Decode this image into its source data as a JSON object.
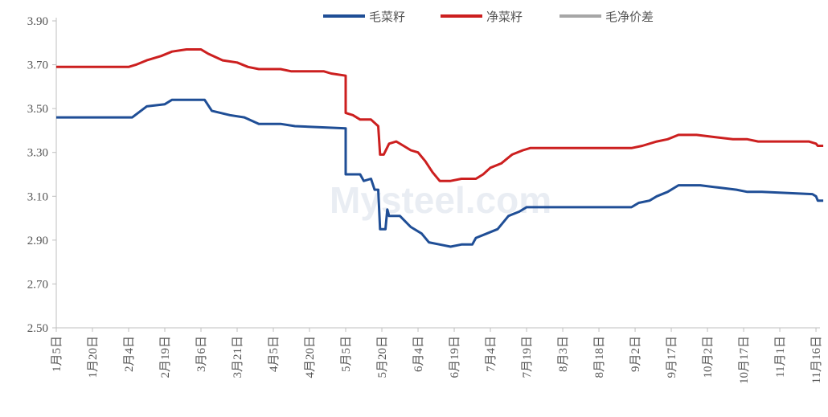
{
  "chart_data": {
    "type": "line",
    "title": "",
    "xlabel": "",
    "ylabel": "",
    "ylim": [
      2.5,
      3.9
    ],
    "y_ticks": [
      "2.50",
      "2.70",
      "2.90",
      "3.10",
      "3.30",
      "3.50",
      "3.70",
      "3.90"
    ],
    "x_ticks": [
      "1月5日",
      "1月20日",
      "2月4日",
      "2月19日",
      "3月6日",
      "3月21日",
      "4月5日",
      "4月20日",
      "5月5日",
      "5月20日",
      "6月4日",
      "6月19日",
      "7月4日",
      "7月19日",
      "8月3日",
      "8月18日",
      "9月2日",
      "9月17日",
      "10月2日",
      "10月17日",
      "11月1日",
      "11月16日"
    ],
    "grid": false,
    "legend_position": "top",
    "watermark": "Mysteel.com",
    "series": [
      {
        "name": "毛菜籽",
        "color": "#1f4e96",
        "points": [
          [
            0,
            3.46
          ],
          [
            2.1,
            3.46
          ],
          [
            2.5,
            3.51
          ],
          [
            3.0,
            3.52
          ],
          [
            3.2,
            3.54
          ],
          [
            4.1,
            3.54
          ],
          [
            4.3,
            3.49
          ],
          [
            4.8,
            3.47
          ],
          [
            5.2,
            3.46
          ],
          [
            5.6,
            3.43
          ],
          [
            6.2,
            3.43
          ],
          [
            6.6,
            3.42
          ],
          [
            8.0,
            3.41
          ],
          [
            8.0,
            3.2
          ],
          [
            8.4,
            3.2
          ],
          [
            8.5,
            3.17
          ],
          [
            8.7,
            3.18
          ],
          [
            8.8,
            3.13
          ],
          [
            8.9,
            3.13
          ],
          [
            8.95,
            2.95
          ],
          [
            9.1,
            2.95
          ],
          [
            9.15,
            3.04
          ],
          [
            9.2,
            3.01
          ],
          [
            9.5,
            3.01
          ],
          [
            9.8,
            2.96
          ],
          [
            10.1,
            2.93
          ],
          [
            10.3,
            2.89
          ],
          [
            10.6,
            2.88
          ],
          [
            10.9,
            2.87
          ],
          [
            11.2,
            2.88
          ],
          [
            11.5,
            2.88
          ],
          [
            11.6,
            2.91
          ],
          [
            11.9,
            2.93
          ],
          [
            12.2,
            2.95
          ],
          [
            12.5,
            3.01
          ],
          [
            12.8,
            3.03
          ],
          [
            13.0,
            3.05
          ],
          [
            15.9,
            3.05
          ],
          [
            16.1,
            3.07
          ],
          [
            16.4,
            3.08
          ],
          [
            16.6,
            3.1
          ],
          [
            16.9,
            3.12
          ],
          [
            17.2,
            3.15
          ],
          [
            17.8,
            3.15
          ],
          [
            18.3,
            3.14
          ],
          [
            18.8,
            3.13
          ],
          [
            19.1,
            3.12
          ],
          [
            19.5,
            3.12
          ],
          [
            20.9,
            3.11
          ],
          [
            21.0,
            3.1
          ],
          [
            21.05,
            3.08
          ],
          [
            21.2,
            3.08
          ]
        ]
      },
      {
        "name": "净菜籽",
        "color": "#cc1f1f",
        "points": [
          [
            0,
            3.69
          ],
          [
            2.0,
            3.69
          ],
          [
            2.2,
            3.7
          ],
          [
            2.5,
            3.72
          ],
          [
            2.9,
            3.74
          ],
          [
            3.2,
            3.76
          ],
          [
            3.6,
            3.77
          ],
          [
            4.0,
            3.77
          ],
          [
            4.2,
            3.75
          ],
          [
            4.6,
            3.72
          ],
          [
            5.0,
            3.71
          ],
          [
            5.3,
            3.69
          ],
          [
            5.6,
            3.68
          ],
          [
            6.2,
            3.68
          ],
          [
            6.5,
            3.67
          ],
          [
            7.4,
            3.67
          ],
          [
            7.6,
            3.66
          ],
          [
            8.0,
            3.65
          ],
          [
            8.0,
            3.48
          ],
          [
            8.2,
            3.47
          ],
          [
            8.4,
            3.45
          ],
          [
            8.7,
            3.45
          ],
          [
            8.9,
            3.42
          ],
          [
            8.95,
            3.29
          ],
          [
            9.05,
            3.29
          ],
          [
            9.2,
            3.34
          ],
          [
            9.4,
            3.35
          ],
          [
            9.6,
            3.33
          ],
          [
            9.8,
            3.31
          ],
          [
            10.0,
            3.3
          ],
          [
            10.2,
            3.26
          ],
          [
            10.4,
            3.21
          ],
          [
            10.6,
            3.17
          ],
          [
            10.9,
            3.17
          ],
          [
            11.2,
            3.18
          ],
          [
            11.6,
            3.18
          ],
          [
            11.8,
            3.2
          ],
          [
            12.0,
            3.23
          ],
          [
            12.3,
            3.25
          ],
          [
            12.6,
            3.29
          ],
          [
            12.9,
            3.31
          ],
          [
            13.1,
            3.32
          ],
          [
            15.9,
            3.32
          ],
          [
            16.2,
            3.33
          ],
          [
            16.6,
            3.35
          ],
          [
            16.9,
            3.36
          ],
          [
            17.2,
            3.38
          ],
          [
            17.7,
            3.38
          ],
          [
            18.2,
            3.37
          ],
          [
            18.7,
            3.36
          ],
          [
            19.1,
            3.36
          ],
          [
            19.4,
            3.35
          ],
          [
            20.8,
            3.35
          ],
          [
            21.0,
            3.34
          ],
          [
            21.05,
            3.33
          ],
          [
            21.2,
            3.33
          ]
        ]
      },
      {
        "name": "毛净价差",
        "color": "#a6a6a6",
        "points": []
      }
    ]
  }
}
